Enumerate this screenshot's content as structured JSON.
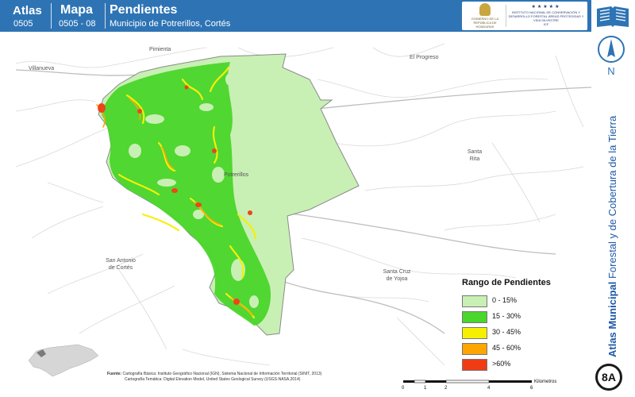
{
  "header": {
    "atlas_label": "Atlas",
    "atlas_code": "0505",
    "map_label": "Mapa",
    "map_code": "0505 - 08",
    "title": "Pendientes",
    "subtitle": "Municipio de Potrerillos, Cortés",
    "logo_left_text": "GOBIERNO DE LA REPÚBLICA DE HONDURAS",
    "logo_right_text": "INSTITUTO NACIONAL DE CONSERVACIÓN Y DESARROLLO FORESTAL ÁREAS PROTEGIDAS Y VIDA SILVESTRE",
    "logo_right_acronym": "ICF",
    "book_icon": "open-book-icon"
  },
  "places": {
    "pimienta": "Pimienta",
    "villanueva": "Villanueva",
    "el_progreso": "El Progreso",
    "santa_rita_1": "Santa",
    "santa_rita_2": "Rita",
    "potrerillos": "Potrerillos",
    "san_antonio_1": "San Antonio",
    "san_antonio_2": "de Cortés",
    "santa_cruz_1": "Santa Cruz",
    "santa_cruz_2": "de Yojoa"
  },
  "legend": {
    "title": "Rango de Pendientes",
    "items": [
      {
        "label": "0 - 15%",
        "color": "#c8f0b4"
      },
      {
        "label": "15 - 30%",
        "color": "#4ad62a"
      },
      {
        "label": "30 - 45%",
        "color": "#f6f000"
      },
      {
        "label": "45 - 60%",
        "color": "#ffa500"
      },
      {
        "label": ">60%",
        "color": "#f03c14"
      }
    ]
  },
  "source": {
    "label": "Fuente:",
    "line1": "Cartografía Básica: Instituto Geográfico Nacional (IGN), Sistema Nacional de Información Territorial (SINIT, 2013)",
    "line2": "Cartografía Temática: Digital Elevation Model, United States Geological Survey (USGS-NASA,2014)"
  },
  "scale": {
    "ticks": [
      "0",
      "1",
      "2",
      "4",
      "6"
    ],
    "unit": "Kilometros"
  },
  "sidebar": {
    "north_label": "N",
    "title_bold": "Atlas Municipal",
    "title_rest": " Forestal y de Cobertura de la Tierra",
    "badge": "8A"
  },
  "colors": {
    "header": "#2e74b5",
    "municipality_fill": "#c8f0b4",
    "slope_15_30": "#4ad62a",
    "slope_30_45": "#f6f000",
    "slope_45_60": "#ffa500",
    "slope_60": "#f03c14"
  }
}
